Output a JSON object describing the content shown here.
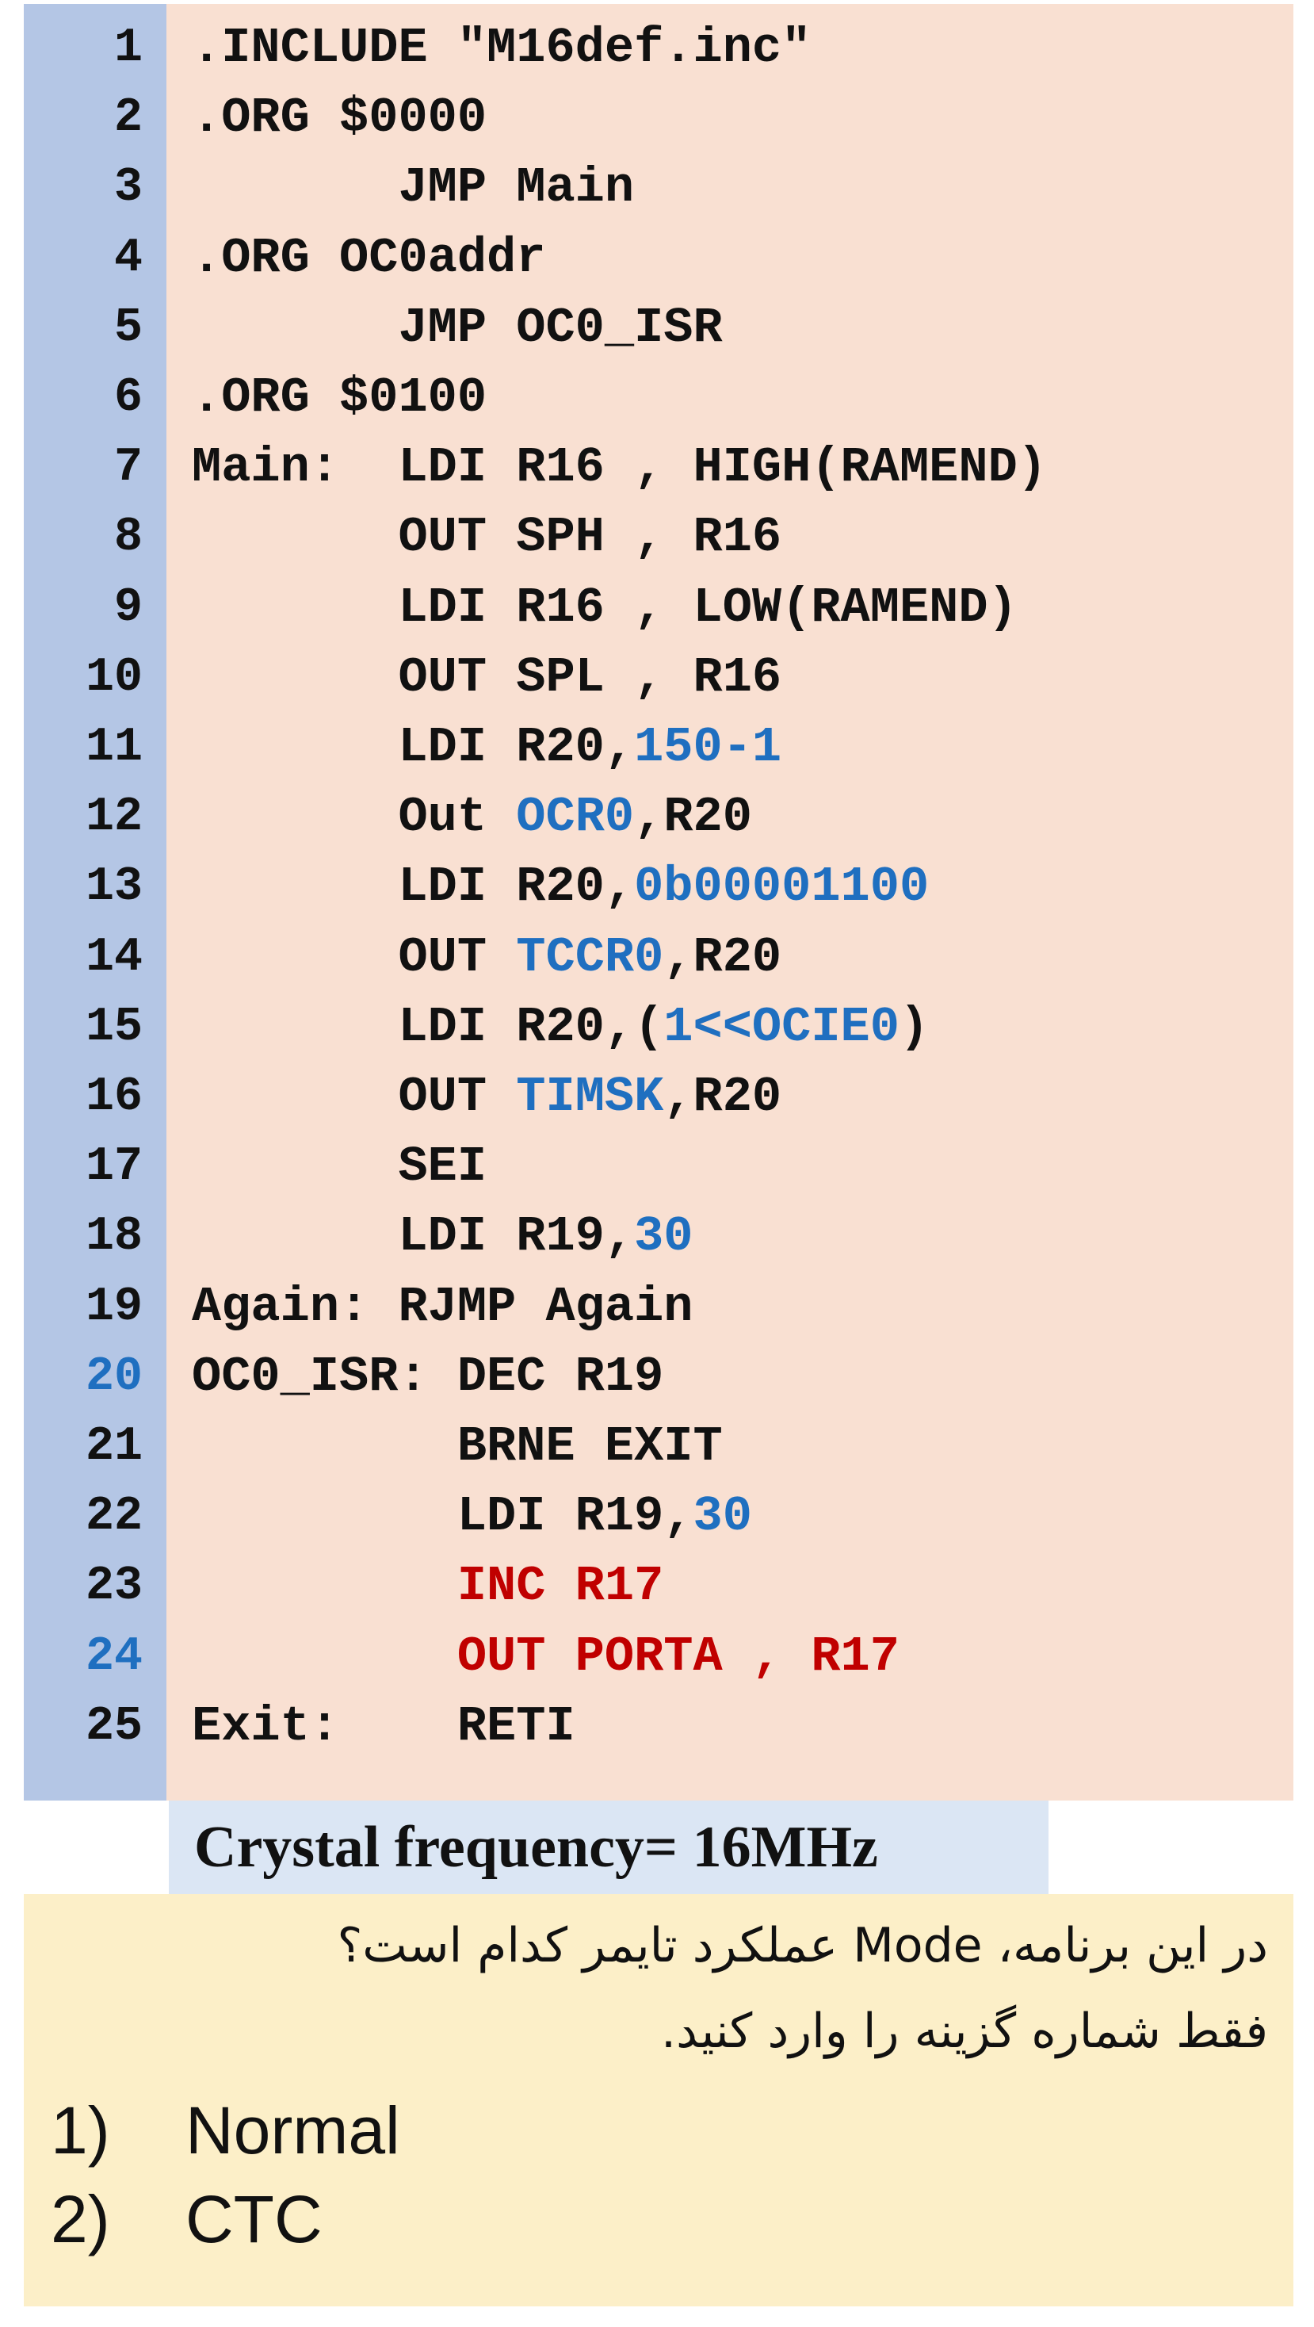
{
  "code": {
    "lines": [
      {
        "n": "1",
        "text": ".INCLUDE \"M16def.inc\""
      },
      {
        "n": "2",
        "text": ".ORG $0000"
      },
      {
        "n": "3",
        "text": "       JMP Main"
      },
      {
        "n": "4",
        "text": ".ORG OC0addr"
      },
      {
        "n": "5",
        "text": "       JMP OC0_ISR"
      },
      {
        "n": "6",
        "text": ".ORG $0100"
      },
      {
        "n": "7",
        "text": "Main:  LDI R16 , HIGH(RAMEND)"
      },
      {
        "n": "8",
        "text": "       OUT SPH , R16"
      },
      {
        "n": "9",
        "text": "       LDI R16 , LOW(RAMEND)"
      },
      {
        "n": "10",
        "text": "       OUT SPL , R16"
      },
      {
        "n": "11",
        "pre": "       LDI R20,",
        "hl": "150-1",
        "post": ""
      },
      {
        "n": "12",
        "pre": "       Out ",
        "hl": "OCR0",
        "post": ",R20"
      },
      {
        "n": "13",
        "pre": "       LDI R20,",
        "hl": "0b00001100",
        "post": ""
      },
      {
        "n": "14",
        "pre": "       OUT ",
        "hl": "TCCR0",
        "post": ",R20"
      },
      {
        "n": "15",
        "pre": "       LDI R20,(",
        "hl": "1<<OCIE0",
        "post": ")"
      },
      {
        "n": "16",
        "pre": "       OUT ",
        "hl": "TIMSK",
        "post": ",R20"
      },
      {
        "n": "17",
        "text": "       SEI"
      },
      {
        "n": "18",
        "pre": "       LDI R19,",
        "hl": "30",
        "post": ""
      },
      {
        "n": "19",
        "text": "Again: RJMP Again"
      },
      {
        "n": "20",
        "text": "OC0_ISR: DEC R19"
      },
      {
        "n": "21",
        "text": "         BRNE EXIT"
      },
      {
        "n": "22",
        "pre": "         LDI R19,",
        "hl": "30",
        "post": ""
      },
      {
        "n": "23",
        "text": "         INC R17"
      },
      {
        "n": "24",
        "text": "         OUT PORTA , R17"
      },
      {
        "n": "25",
        "text": "Exit:    RETI"
      }
    ],
    "highlight_line_numbers": [
      "20",
      "24"
    ],
    "red_lines": [
      "23",
      "24"
    ]
  },
  "crystal": {
    "text": "Crystal frequency= 16MHz"
  },
  "question": {
    "line1": "در این برنامه، Mode عملکرد تایمر کدام است؟",
    "line2": "فقط شماره گزینه را وارد کنید."
  },
  "options": [
    {
      "num": "1)",
      "label": "Normal"
    },
    {
      "num": "2)",
      "label": "CTC"
    }
  ],
  "colors": {
    "code_bg": "#f9e0d2",
    "gutter_bg": "#b4c6e5",
    "number_blue": "#1f6fc0",
    "red": "#c00000",
    "crystal_bg": "#dbe6f4",
    "question_bg": "#fcefc8"
  }
}
